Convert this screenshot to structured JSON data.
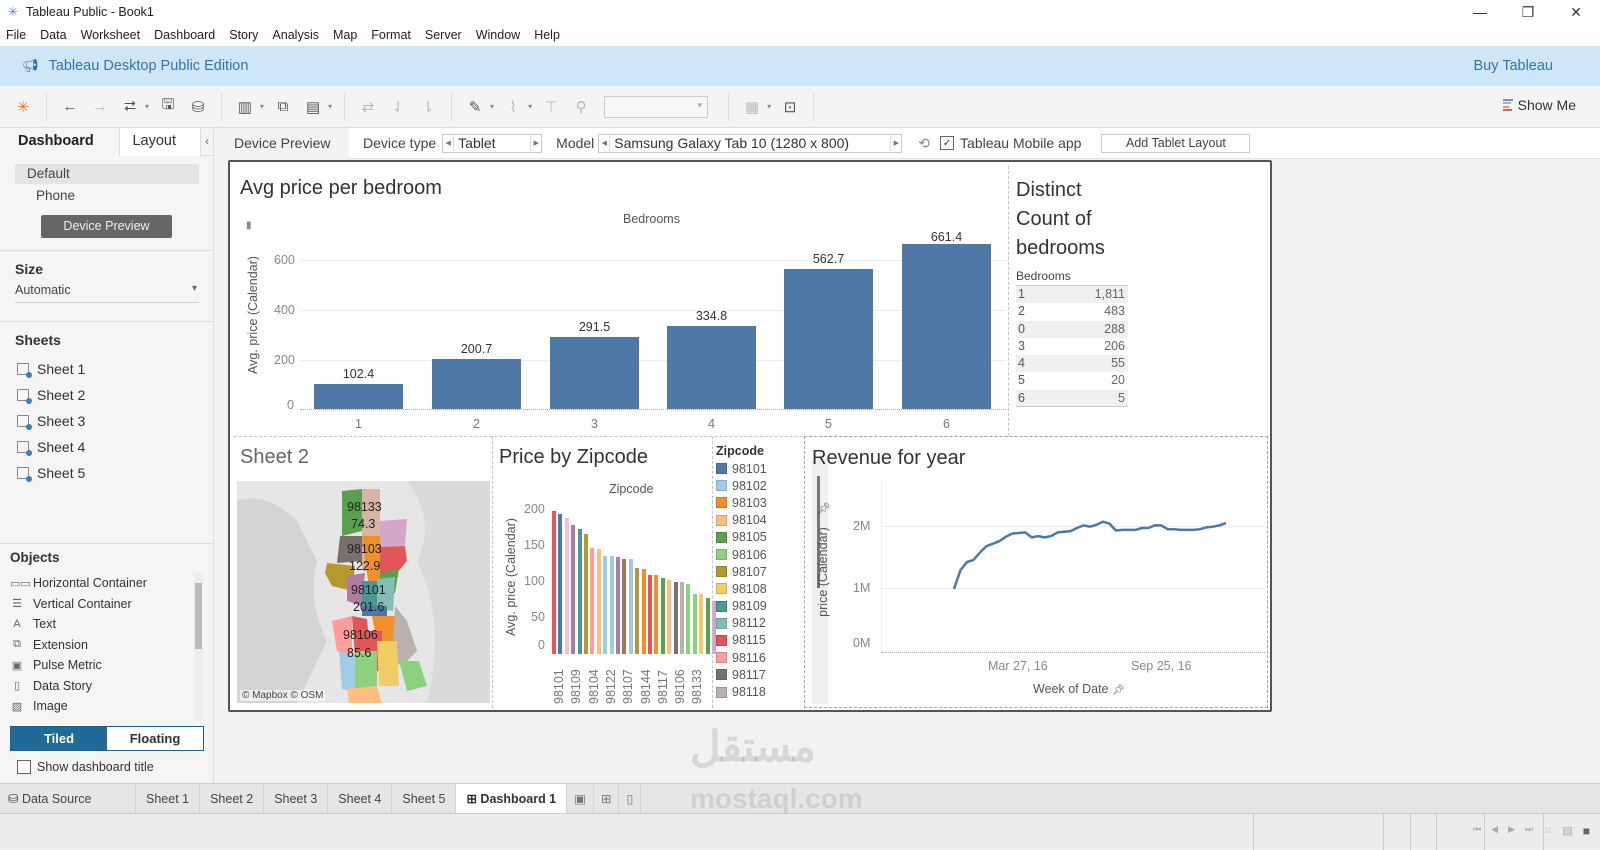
{
  "window": {
    "title": "Tableau Public - Book1",
    "controls": {
      "minimize": "—",
      "restore": "❐",
      "close": "✕"
    }
  },
  "menu": [
    "File",
    "Data",
    "Worksheet",
    "Dashboard",
    "Story",
    "Analysis",
    "Map",
    "Format",
    "Server",
    "Window",
    "Help"
  ],
  "banner": {
    "text": "Tableau Desktop Public Edition",
    "buy": "Buy Tableau"
  },
  "toolbar": {
    "show_me": "Show Me"
  },
  "sidebar": {
    "tabs": {
      "dashboard": "Dashboard",
      "layout": "Layout",
      "collapse": "‹"
    },
    "devices": {
      "default": "Default",
      "phone": "Phone",
      "preview_button": "Device Preview"
    },
    "size": {
      "heading": "Size",
      "value": "Automatic"
    },
    "sheets": {
      "heading": "Sheets",
      "items": [
        "Sheet 1",
        "Sheet 2",
        "Sheet 3",
        "Sheet 4",
        "Sheet 5"
      ]
    },
    "objects": {
      "heading": "Objects",
      "items": [
        {
          "label": "Horizontal Container",
          "icon": "▭▭"
        },
        {
          "label": "Vertical Container",
          "icon": "☰"
        },
        {
          "label": "Text",
          "icon": "A"
        },
        {
          "label": "Extension",
          "icon": "⧉"
        },
        {
          "label": "Pulse Metric",
          "icon": "▣"
        },
        {
          "label": "Data Story",
          "icon": "▯"
        },
        {
          "label": "Image",
          "icon": "▨"
        }
      ]
    },
    "tiled": "Tiled",
    "floating": "Floating",
    "show_title": "Show dashboard title"
  },
  "device_bar": {
    "tab": "Device Preview",
    "device_type_label": "Device type",
    "device_type": "Tablet",
    "model_label": "Model",
    "model": "Samsung Galaxy Tab 10 (1280 x 800)",
    "mobile_app": "Tableau Mobile app",
    "add_layout": "Add Tablet Layout"
  },
  "dashboard": {
    "bedroom_chart": {
      "title": "Avg price per bedroom",
      "header": "Bedrooms",
      "ylabel": "Avg. price (Calendar)",
      "yticks": [
        "600",
        "400",
        "200",
        "0"
      ]
    },
    "distinct_count": {
      "title_lines": [
        "Distinct",
        "Count of",
        "bedrooms"
      ],
      "column": "Bedrooms",
      "rows": [
        {
          "k": "1",
          "v": "1,811"
        },
        {
          "k": "2",
          "v": "483"
        },
        {
          "k": "0",
          "v": "288"
        },
        {
          "k": "3",
          "v": "206"
        },
        {
          "k": "4",
          "v": "55"
        },
        {
          "k": "5",
          "v": "20"
        },
        {
          "k": "6",
          "v": "5"
        }
      ]
    },
    "map": {
      "title": "Sheet 2",
      "attribution": "© Mapbox © OSM",
      "labels": [
        {
          "zip": "98133",
          "val": "74.3"
        },
        {
          "zip": "98103",
          "val": "122.9"
        },
        {
          "zip": "98101",
          "val": "201.6"
        },
        {
          "zip": "98106",
          "val": "85.6"
        }
      ]
    },
    "zip_chart": {
      "title": "Price by Zipcode",
      "header": "Zipcode",
      "ylabel": "Avg. price (Calendar)",
      "yticks": [
        "200",
        "150",
        "100",
        "50",
        "0"
      ],
      "xticks": [
        "98101",
        "98109",
        "98104",
        "98122",
        "98107",
        "98144",
        "98117",
        "98106",
        "98133"
      ]
    },
    "legend": {
      "title": "Zipcode",
      "items": [
        {
          "zip": "98101",
          "color": "#4e79a7"
        },
        {
          "zip": "98102",
          "color": "#a0cbe8"
        },
        {
          "zip": "98103",
          "color": "#f28e2b"
        },
        {
          "zip": "98104",
          "color": "#ffbe7d"
        },
        {
          "zip": "98105",
          "color": "#59a14f"
        },
        {
          "zip": "98106",
          "color": "#8cd17d"
        },
        {
          "zip": "98107",
          "color": "#b6992d"
        },
        {
          "zip": "98108",
          "color": "#f1ce63"
        },
        {
          "zip": "98109",
          "color": "#499894"
        },
        {
          "zip": "98112",
          "color": "#86bcb6"
        },
        {
          "zip": "98115",
          "color": "#e15759"
        },
        {
          "zip": "98116",
          "color": "#ff9d9a"
        },
        {
          "zip": "98117",
          "color": "#79706e"
        },
        {
          "zip": "98118",
          "color": "#bab0ac"
        }
      ]
    },
    "revenue": {
      "title": "Revenue for year",
      "ylabel": "price (Calendar)",
      "yticks": [
        "2M",
        "1M",
        "0M"
      ],
      "xticks": [
        "Mar 27, 16",
        "Sep 25, 16"
      ],
      "xlabel": "Week of Date"
    }
  },
  "sheet_tabs": {
    "data_source": "Data Source",
    "sheets": [
      "Sheet 1",
      "Sheet 2",
      "Sheet 3",
      "Sheet 4",
      "Sheet 5"
    ],
    "active": "Dashboard 1"
  },
  "watermark": {
    "arabic": "مستقل",
    "latin": "mostaql.com"
  },
  "chart_data": [
    {
      "type": "bar",
      "title": "Avg price per bedroom",
      "xlabel": "Bedrooms",
      "ylabel": "Avg. price (Calendar)",
      "categories": [
        "1",
        "2",
        "3",
        "4",
        "5",
        "6"
      ],
      "values": [
        102.4,
        200.7,
        291.5,
        334.8,
        562.7,
        661.4
      ],
      "ylim": [
        0,
        700
      ],
      "grid": true
    },
    {
      "type": "table",
      "title": "Distinct Count of bedrooms",
      "categories": [
        "1",
        "2",
        "0",
        "3",
        "4",
        "5",
        "6"
      ],
      "values": [
        1811,
        483,
        288,
        206,
        55,
        20,
        5
      ]
    },
    {
      "type": "bar",
      "title": "Price by Zipcode",
      "xlabel": "Zipcode",
      "ylabel": "Avg. price (Calendar)",
      "ylim": [
        0,
        210
      ],
      "tick_labels": [
        "98101",
        "98109",
        "98104",
        "98122",
        "98107",
        "98144",
        "98117",
        "98106",
        "98133"
      ],
      "values": [
        206,
        201,
        196,
        185,
        180,
        172,
        152,
        151,
        141,
        141,
        140,
        137,
        136,
        124,
        122,
        114,
        113,
        110,
        106,
        103,
        103,
        100,
        87,
        86,
        80,
        76
      ],
      "colors": [
        "#e15759",
        "#4e79a7",
        "#fabfd2",
        "#b07aa1",
        "#499894",
        "#b6992d",
        "#ff9d9a",
        "#ffbe7d",
        "#a0cbe8",
        "#a0cbe8",
        "#b07aa1",
        "#9d7660",
        "#a0cbe8",
        "#b6992d",
        "#f28e2b",
        "#e15759",
        "#f28e2b",
        "#59a14f",
        "#ffbe7d",
        "#79706e",
        "#bab0ac",
        "#8cd17d",
        "#8cd17d",
        "#f1ce63",
        "#59a14f",
        "#d4a6c8"
      ]
    },
    {
      "type": "line",
      "title": "Revenue for year",
      "xlabel": "Week of Date",
      "ylabel": "price (Calendar)",
      "x_ticks": [
        "Mar 27, 16",
        "Sep 25, 16"
      ],
      "ylim": [
        0,
        2500000
      ],
      "values": [
        1000000,
        1300000,
        1430000,
        1460000,
        1580000,
        1680000,
        1720000,
        1760000,
        1830000,
        1880000,
        1890000,
        1900000,
        1820000,
        1840000,
        1820000,
        1840000,
        1900000,
        1910000,
        1920000,
        1970000,
        2010000,
        1990000,
        2020000,
        2070000,
        2040000,
        1930000,
        1940000,
        1940000,
        1940000,
        1970000,
        1970000,
        2010000,
        2010000,
        1950000,
        1950000,
        1940000,
        1940000,
        1940000,
        1950000,
        1980000,
        1990000,
        2010000,
        2050000
      ]
    }
  ]
}
